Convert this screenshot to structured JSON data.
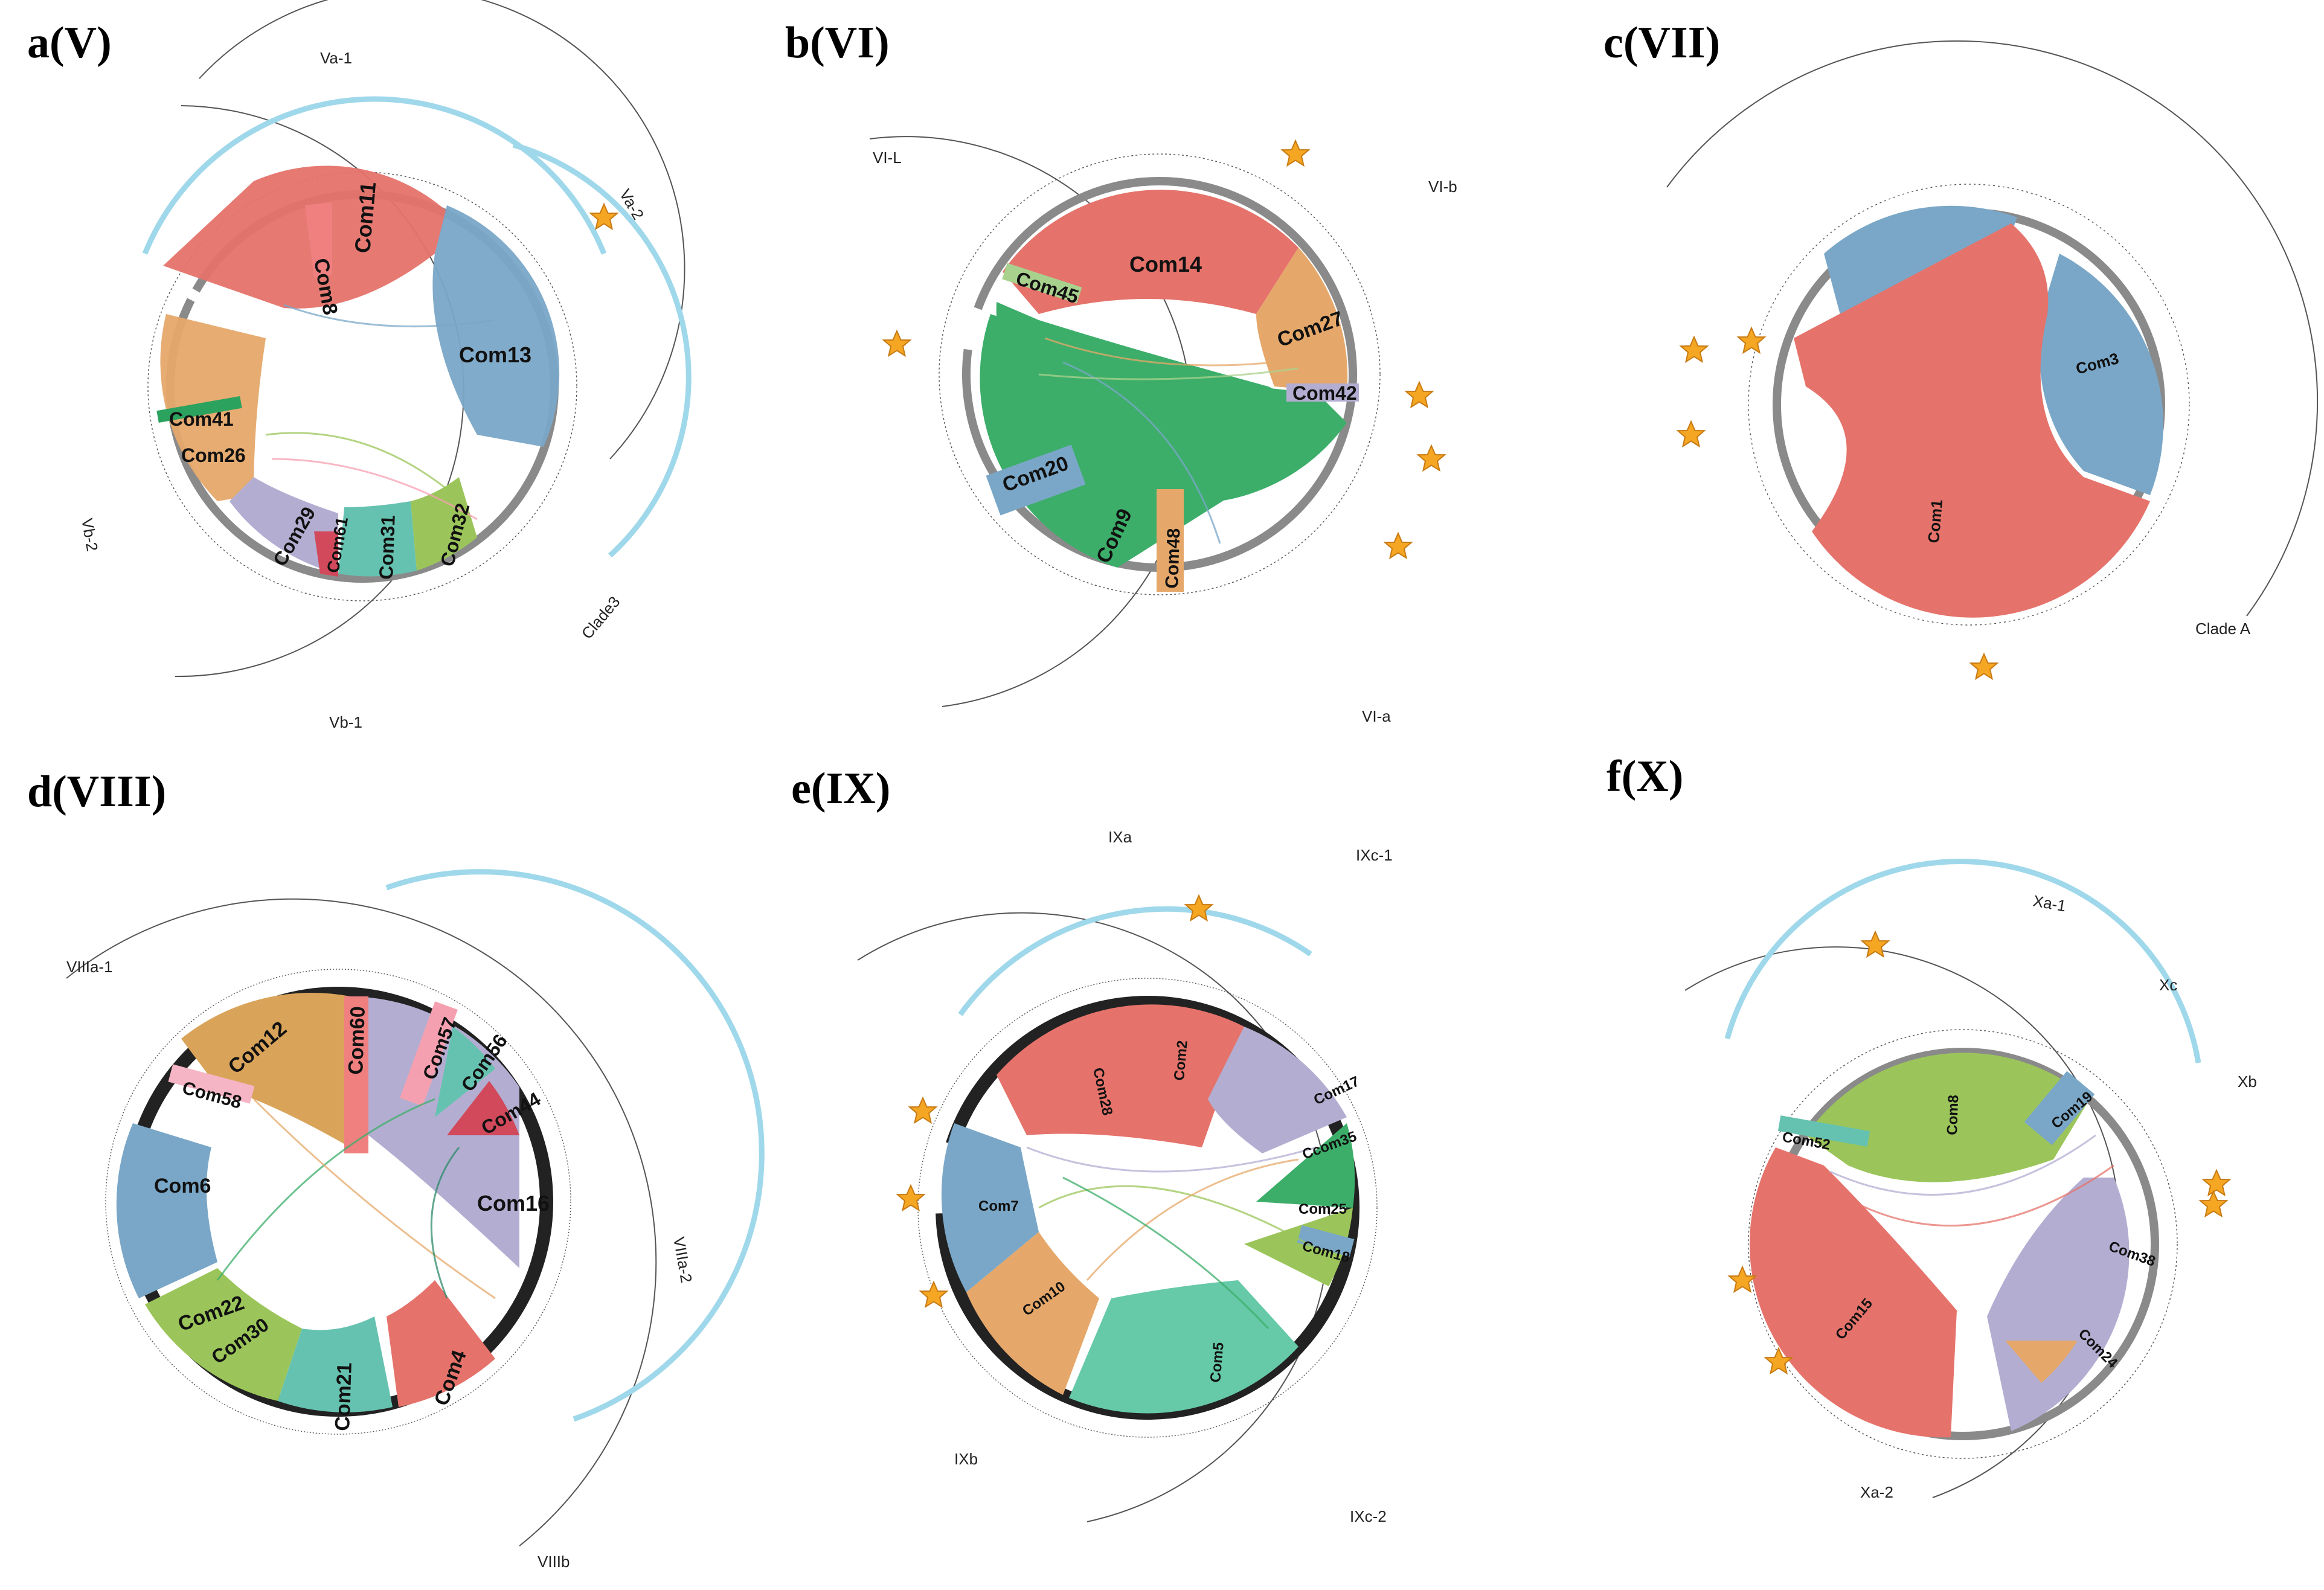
{
  "figure": {
    "panels": [
      {
        "id": "a",
        "label": "a(V)",
        "communities": [
          {
            "name": "Com8",
            "color": "#f08080"
          },
          {
            "name": "Com11",
            "color": "#e5736b"
          },
          {
            "name": "Com13",
            "color": "#7aa7c7"
          },
          {
            "name": "Com41",
            "color": "#2ca25f"
          },
          {
            "name": "Com26",
            "color": "#e6a86a"
          },
          {
            "name": "Com29",
            "color": "#b3aed1"
          },
          {
            "name": "Com61",
            "color": "#d1495b"
          },
          {
            "name": "Com31",
            "color": "#66c2b0"
          },
          {
            "name": "Com32",
            "color": "#9bc55a"
          }
        ],
        "clades": [
          "Va-1",
          "Va-2",
          "Vb-2",
          "Vb-1",
          "Clade3"
        ],
        "stars": 1
      },
      {
        "id": "b",
        "label": "b(VI)",
        "communities": [
          {
            "name": "Com14",
            "color": "#e5736b"
          },
          {
            "name": "Com45",
            "color": "#a9d18e"
          },
          {
            "name": "Com27",
            "color": "#e6a86a"
          },
          {
            "name": "Com42",
            "color": "#b3aed1"
          },
          {
            "name": "Com20",
            "color": "#7aa7c7"
          },
          {
            "name": "Com9",
            "color": "#3cae6a"
          },
          {
            "name": "Com48",
            "color": "#e6a86a"
          }
        ],
        "clades": [
          "VI-L",
          "VI-b",
          "VI-a"
        ],
        "stars": 5
      },
      {
        "id": "c",
        "label": "c(VII)",
        "communities": [
          {
            "name": "Com3",
            "color": "#7aa7c7"
          },
          {
            "name": "Com1",
            "color": "#e5736b"
          }
        ],
        "clades": [
          "Clade A"
        ],
        "stars": 4
      },
      {
        "id": "d",
        "label": "d(VIII)",
        "communities": [
          {
            "name": "Com60",
            "color": "#f08080"
          },
          {
            "name": "Com57",
            "color": "#f5a0b0"
          },
          {
            "name": "Com56",
            "color": "#66c2b0"
          },
          {
            "name": "Com12",
            "color": "#d9a45a"
          },
          {
            "name": "Com58",
            "color": "#f5b5c5"
          },
          {
            "name": "Com44",
            "color": "#d1495b"
          },
          {
            "name": "Com16",
            "color": "#b3aed1"
          },
          {
            "name": "Com6",
            "color": "#7aa7c7"
          },
          {
            "name": "Com22",
            "color": "#9bc55a"
          },
          {
            "name": "Com30",
            "color": "#3cae6a"
          },
          {
            "name": "Com21",
            "color": "#66c2b0"
          },
          {
            "name": "Com4",
            "color": "#e5736b"
          }
        ],
        "clades": [
          "VIIIa-1",
          "VIIIa-2",
          "VIIIb"
        ],
        "stars": 0
      },
      {
        "id": "e",
        "label": "e(IX)",
        "communities": [
          {
            "name": "Com28",
            "color": "#e6a86a"
          },
          {
            "name": "Com2",
            "color": "#e5736b"
          },
          {
            "name": "Com17",
            "color": "#b3aed1"
          },
          {
            "name": "Ccom35",
            "color": "#3cae6a"
          },
          {
            "name": "Com25",
            "color": "#9bc55a"
          },
          {
            "name": "Com18",
            "color": "#7aa7c7"
          },
          {
            "name": "Com7",
            "color": "#7aa7c7"
          },
          {
            "name": "Com10",
            "color": "#e6a86a"
          },
          {
            "name": "Com5",
            "color": "#66c9a8"
          }
        ],
        "clades": [
          "IXa",
          "IXc-1",
          "IXb",
          "IXc-2"
        ],
        "stars": 4
      },
      {
        "id": "f",
        "label": "f(X)",
        "communities": [
          {
            "name": "Com8",
            "color": "#9bc55a"
          },
          {
            "name": "Com19",
            "color": "#7aa7c7"
          },
          {
            "name": "Com52",
            "color": "#66c2b0"
          },
          {
            "name": "Com38",
            "color": "#b3aed1"
          },
          {
            "name": "Com24",
            "color": "#e6a86a"
          },
          {
            "name": "Com15",
            "color": "#e5736b"
          }
        ],
        "clades": [
          "Xa-1",
          "Xc",
          "Xb",
          "Xa-2"
        ],
        "stars": 5
      }
    ]
  }
}
